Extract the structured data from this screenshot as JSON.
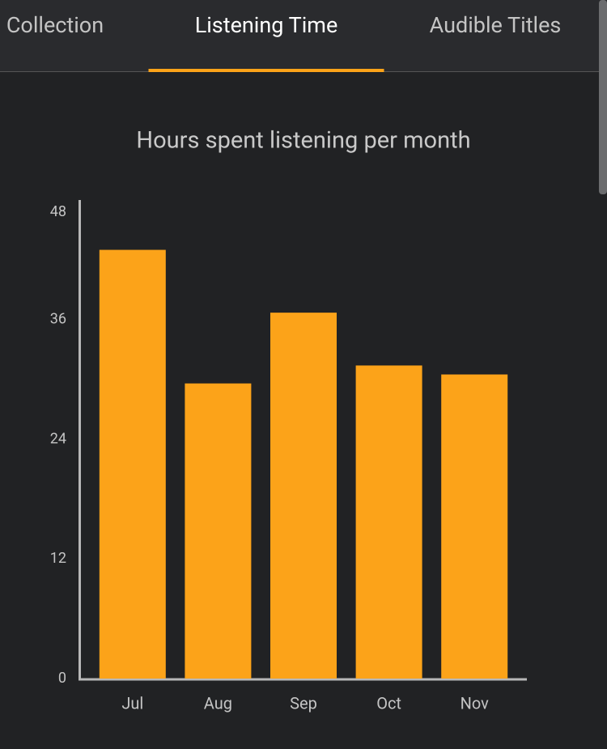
{
  "tabs": {
    "items": [
      "Collection",
      "Listening Time",
      "Audible Titles"
    ],
    "active": 1
  },
  "chart_data": {
    "type": "bar",
    "title": "Hours spent listening per month",
    "categories": [
      "Jul",
      "Aug",
      "Sep",
      "Oct",
      "Nov"
    ],
    "values": [
      43,
      29.6,
      36.7,
      31.4,
      30.5
    ],
    "color": "#fca319",
    "ylim": [
      0,
      48
    ],
    "yticks": [
      0,
      12,
      24,
      36,
      48
    ],
    "grid": false
  }
}
